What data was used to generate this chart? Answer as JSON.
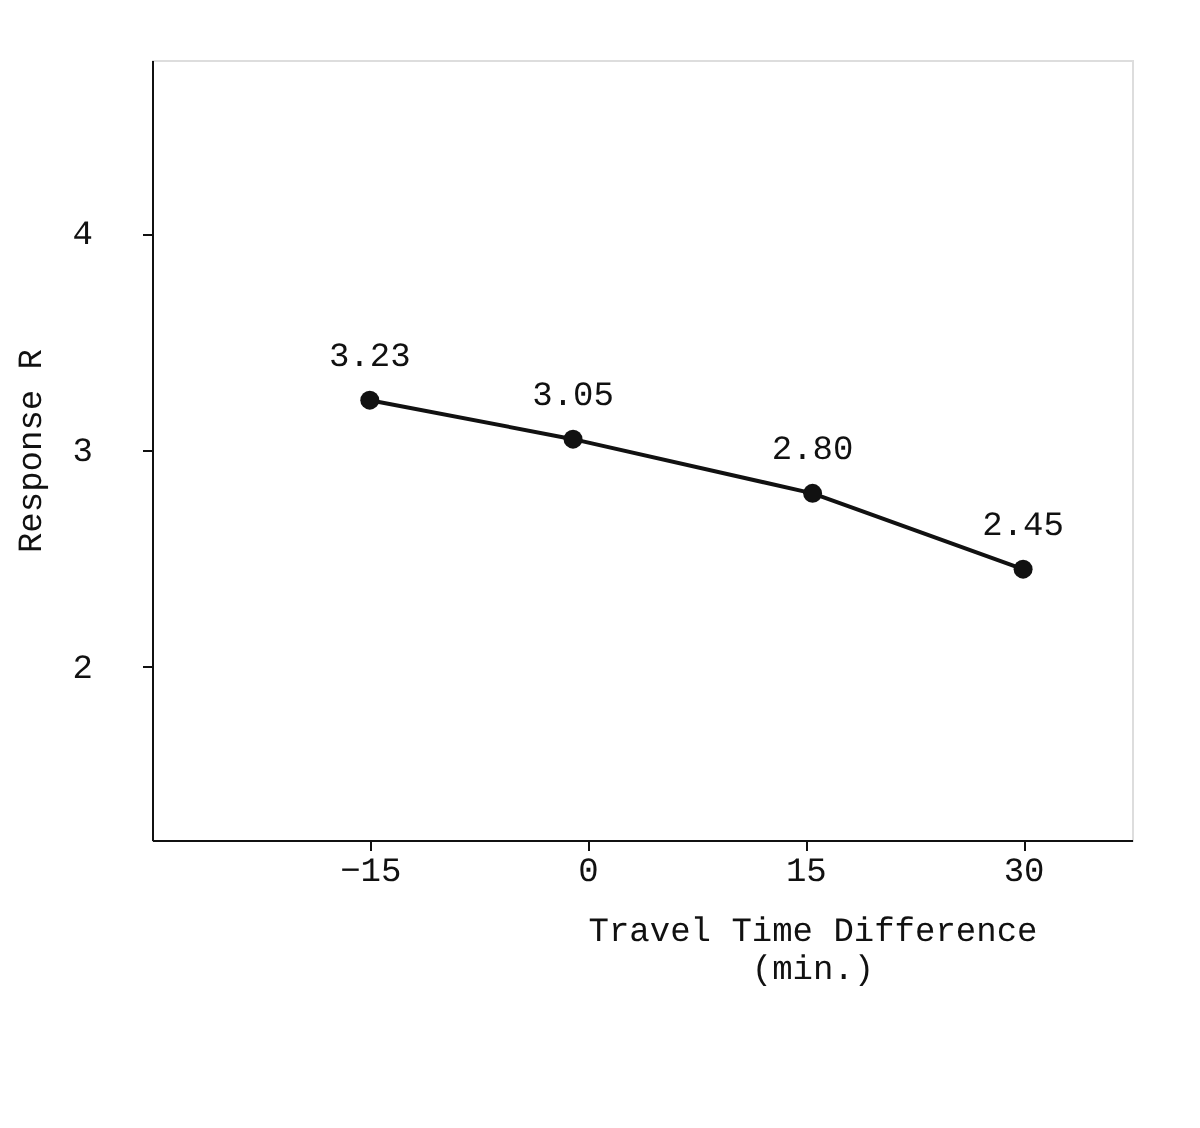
{
  "chart_data": {
    "type": "line",
    "xlabel": "Travel Time Difference\n(min.)",
    "ylabel": "Response R",
    "x": [
      -15,
      -1,
      15.5,
      30
    ],
    "series": [
      {
        "color": "#111111",
        "values": [
          3.23,
          3.05,
          2.8,
          2.45
        ]
      }
    ],
    "value_labels": [
      "3.23",
      "3.05",
      "2.80",
      "2.45"
    ],
    "xlim": [
      -30,
      37.5
    ],
    "xticks": [
      -15,
      0,
      15,
      30
    ],
    "ylim": [
      1.2,
      4.8
    ],
    "yticks": [
      2,
      3,
      4
    ],
    "marker": "circle",
    "line_style": "solid",
    "grid": false,
    "legend": false
  }
}
